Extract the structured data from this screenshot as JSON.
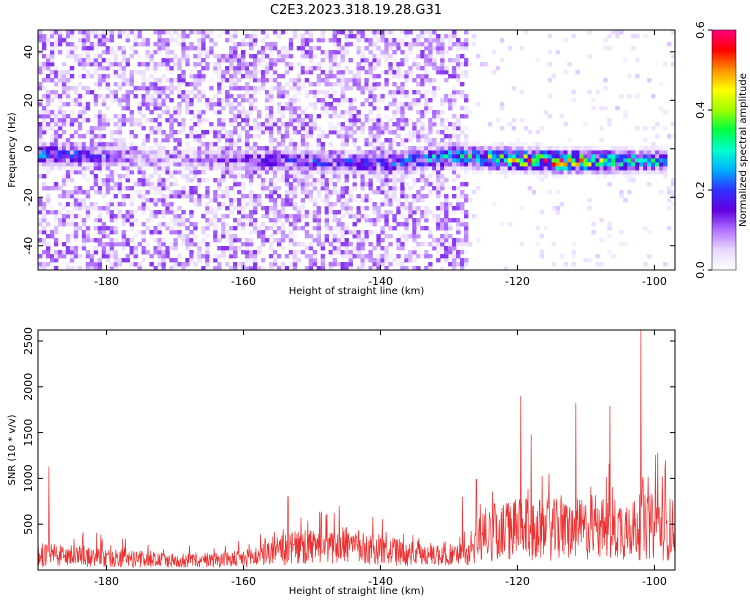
{
  "title": "C2E3.2023.318.19.28.G31",
  "chart_data": [
    {
      "type": "heatmap",
      "title": "C2E3.2023.318.19.28.G31",
      "xlabel": "Height of straight line (km)",
      "ylabel": "Frequency (Hz)",
      "xlim": [
        -190,
        -97
      ],
      "ylim": [
        -50,
        49
      ],
      "x_ticks": [
        -180,
        -160,
        -140,
        -120,
        -100
      ],
      "y_ticks": [
        -40,
        -20,
        0,
        20,
        40
      ],
      "colorbar": {
        "label": "Normalized spectral amplitude",
        "range": [
          0.0,
          0.6
        ],
        "ticks": [
          0.0,
          0.2,
          0.4,
          0.6
        ],
        "colors": [
          "#ffffff",
          "#e8d8ff",
          "#b070ff",
          "#6000e0",
          "#3030ff",
          "#00b0ff",
          "#00ffcc",
          "#00ff40",
          "#a0ff00",
          "#ffff00",
          "#ff9000",
          "#ff0000",
          "#ff0080"
        ]
      },
      "signal_band": {
        "x_start": -190,
        "x_end": -98,
        "center_frequency_hz": [
          {
            "x": -190,
            "f": -2
          },
          {
            "x": -170,
            "f": -4
          },
          {
            "x": -150,
            "f": -5
          },
          {
            "x": -140,
            "f": -6
          },
          {
            "x": -130,
            "f": -3
          },
          {
            "x": -115,
            "f": -5
          },
          {
            "x": -100,
            "f": -5
          }
        ],
        "peak_amplitude": [
          {
            "x": -188,
            "a": 0.25
          },
          {
            "x": -170,
            "a": 0.05
          },
          {
            "x": -162,
            "a": 0.15
          },
          {
            "x": -150,
            "a": 0.22
          },
          {
            "x": -140,
            "a": 0.2
          },
          {
            "x": -130,
            "a": 0.3
          },
          {
            "x": -120,
            "a": 0.45
          },
          {
            "x": -115,
            "a": 0.55
          },
          {
            "x": -105,
            "a": 0.35
          },
          {
            "x": -98,
            "a": 0.3
          }
        ]
      },
      "noise_region": {
        "x_start": -190,
        "x_end": -127,
        "level": 0.08
      }
    },
    {
      "type": "line",
      "xlabel": "Height of straight line (km)",
      "ylabel": "SNR (10 * v/v)",
      "xlim": [
        -190,
        -97
      ],
      "ylim": [
        0,
        2620
      ],
      "x_ticks": [
        -180,
        -160,
        -140,
        -120,
        -100
      ],
      "y_ticks": [
        500,
        1000,
        1500,
        2000,
        2500
      ],
      "color": "#ee3030",
      "baseline_envelope": [
        {
          "x": -190,
          "y": 250
        },
        {
          "x": -180,
          "y": 200
        },
        {
          "x": -170,
          "y": 150
        },
        {
          "x": -160,
          "y": 180
        },
        {
          "x": -153,
          "y": 350
        },
        {
          "x": -145,
          "y": 400
        },
        {
          "x": -135,
          "y": 250
        },
        {
          "x": -127,
          "y": 250
        },
        {
          "x": -125,
          "y": 600
        },
        {
          "x": -120,
          "y": 650
        },
        {
          "x": -110,
          "y": 650
        },
        {
          "x": -100,
          "y": 700
        },
        {
          "x": -97,
          "y": 650
        }
      ],
      "peaks": [
        {
          "x": -188.4,
          "y": 1130
        },
        {
          "x": -153.5,
          "y": 800
        },
        {
          "x": -146,
          "y": 700
        },
        {
          "x": -128,
          "y": 800
        },
        {
          "x": -126,
          "y": 990
        },
        {
          "x": -119.5,
          "y": 1900
        },
        {
          "x": -118,
          "y": 1480
        },
        {
          "x": -111.5,
          "y": 1820
        },
        {
          "x": -106.5,
          "y": 1790
        },
        {
          "x": -102,
          "y": 2620
        },
        {
          "x": -99.5,
          "y": 1280
        }
      ]
    }
  ]
}
